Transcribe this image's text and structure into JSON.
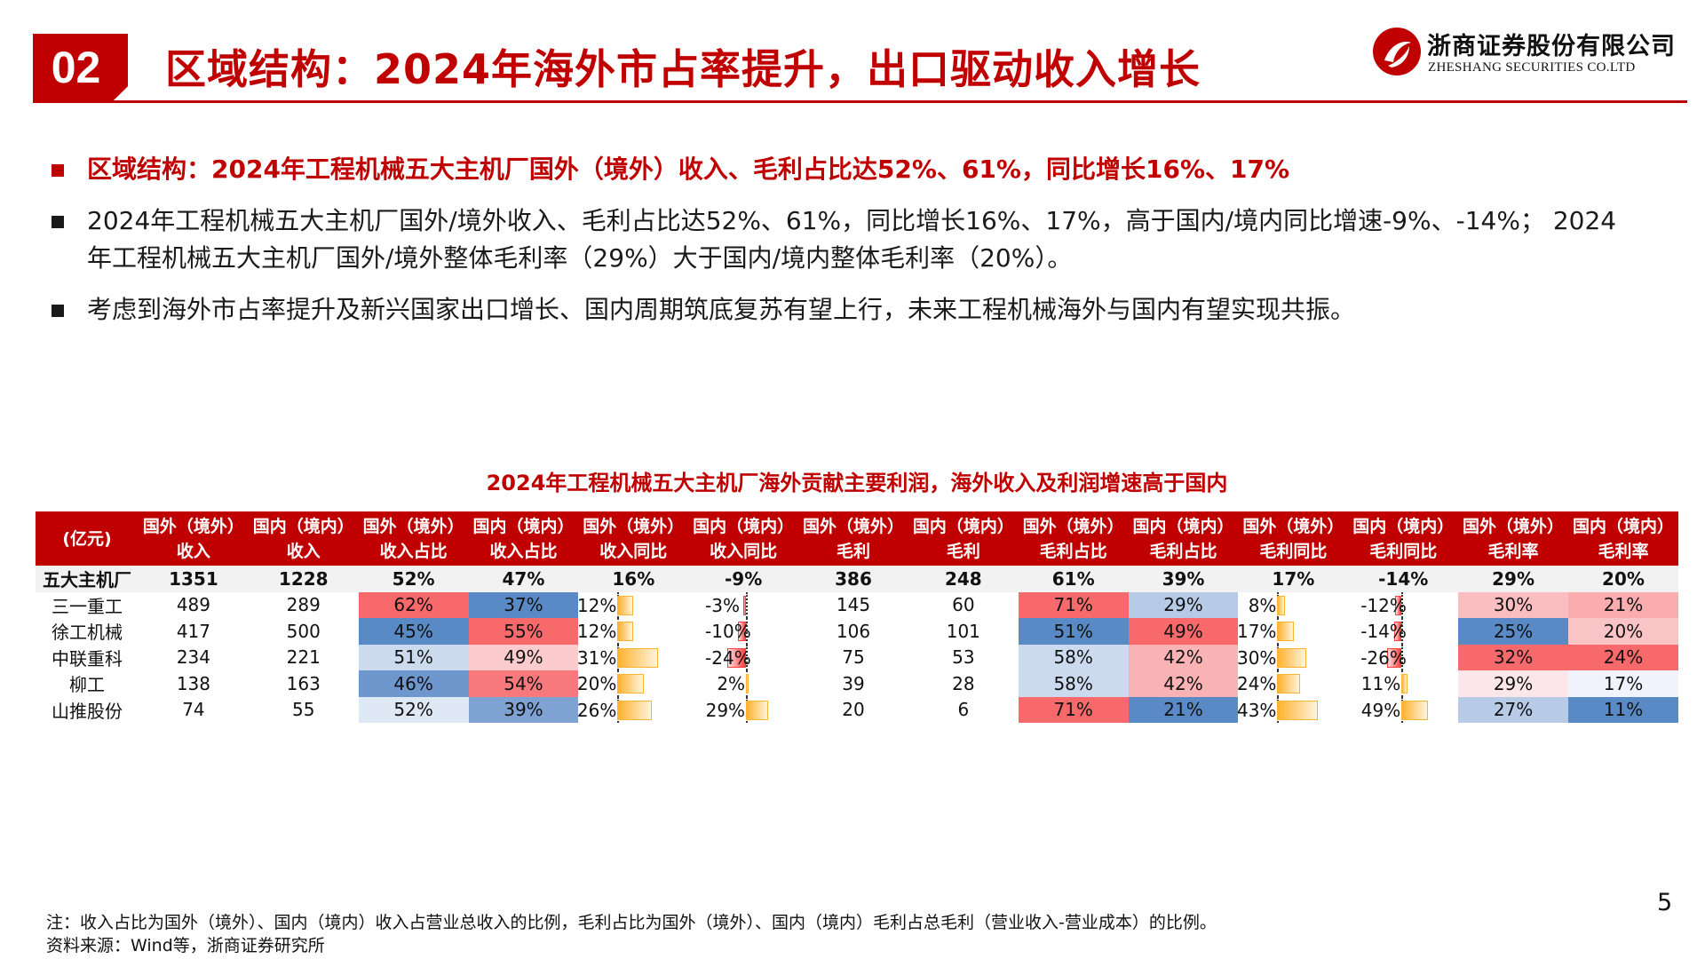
{
  "header": {
    "section_number": "02",
    "title": "区域结构：2024年海外市占率提升，出口驱动收入增长",
    "brand_cn": "浙商证券股份有限公司",
    "brand_en": "ZHESHANG SECURITIES CO.LTD",
    "brand_color": "#c00000"
  },
  "bullets": [
    "区域结构：2024年工程机械五大主机厂国外（境外）收入、毛利占比达52%、61%，同比增长16%、17%",
    "2024年工程机械五大主机厂国外/境外收入、毛利占比达52%、61%，同比增长16%、17%，高于国内/境内同比增速-9%、-14%； 2024年工程机械五大主机厂国外/境外整体毛利率（29%）大于国内/境内整体毛利率（20%）。",
    "考虑到海外市占率提升及新兴国家出口增长、国内周期筑底复苏有望上行，未来工程机械海外与国内有望实现共振。"
  ],
  "table": {
    "title": "2024年工程机械五大主机厂海外贡献主要利润，海外收入及利润增速高于国内",
    "unit_label": "(亿元)",
    "columns": [
      [
        "国外（境外）",
        "收入"
      ],
      [
        "国内（境内）",
        "收入"
      ],
      [
        "国外（境外）",
        "收入占比"
      ],
      [
        "国内（境内）",
        "收入占比"
      ],
      [
        "国外（境外）",
        "收入同比"
      ],
      [
        "国内（境内）",
        "收入同比"
      ],
      [
        "国外（境外）",
        "毛利"
      ],
      [
        "国内（境内）",
        "毛利"
      ],
      [
        "国外（境外）",
        "毛利占比"
      ],
      [
        "国内（境内）",
        "毛利占比"
      ],
      [
        "国外（境外）",
        "毛利同比"
      ],
      [
        "国内（境内）",
        "毛利同比"
      ],
      [
        "国外（境外）",
        "毛利率"
      ],
      [
        "国内（境内）",
        "毛利率"
      ]
    ],
    "total": {
      "name": "五大主机厂",
      "values": [
        "1351",
        "1228",
        "52%",
        "47%",
        "16%",
        "-9%",
        "386",
        "248",
        "61%",
        "39%",
        "17%",
        "-14%",
        "29%",
        "20%"
      ]
    },
    "rows": [
      {
        "name": "三一重工",
        "values": [
          "489",
          "289",
          "62%",
          "37%",
          "12%",
          "-3%",
          "145",
          "60",
          "71%",
          "29%",
          "8%",
          "-12%",
          "30%",
          "21%"
        ]
      },
      {
        "name": "徐工机械",
        "values": [
          "417",
          "500",
          "45%",
          "55%",
          "12%",
          "-10%",
          "106",
          "101",
          "51%",
          "49%",
          "17%",
          "-14%",
          "25%",
          "20%"
        ]
      },
      {
        "name": "中联重科",
        "values": [
          "234",
          "221",
          "51%",
          "49%",
          "31%",
          "-24%",
          "75",
          "53",
          "58%",
          "42%",
          "30%",
          "-26%",
          "32%",
          "24%"
        ]
      },
      {
        "name": "柳工",
        "values": [
          "138",
          "163",
          "46%",
          "54%",
          "20%",
          "2%",
          "39",
          "28",
          "58%",
          "42%",
          "24%",
          "11%",
          "29%",
          "17%"
        ]
      },
      {
        "name": "山推股份",
        "values": [
          "74",
          "55",
          "52%",
          "39%",
          "26%",
          "29%",
          "20",
          "6",
          "71%",
          "21%",
          "43%",
          "49%",
          "27%",
          "11%"
        ]
      }
    ],
    "colors": {
      "heat_high": "#f8696b",
      "heat_mid": "#fcfcff",
      "heat_low": "#5a8ac6",
      "bar_positive": "#ffb22f",
      "bar_negative": "#ff4040"
    }
  },
  "footnotes": {
    "note": "注：收入占比为国外（境外）、国内（境内）收入占营业总收入的比例，毛利占比为国外（境外）、国内（境内）毛利占总毛利（营业收入-营业成本）的比例。",
    "source": "资料来源：Wind等，浙商证券研究所"
  },
  "page_number": "5"
}
